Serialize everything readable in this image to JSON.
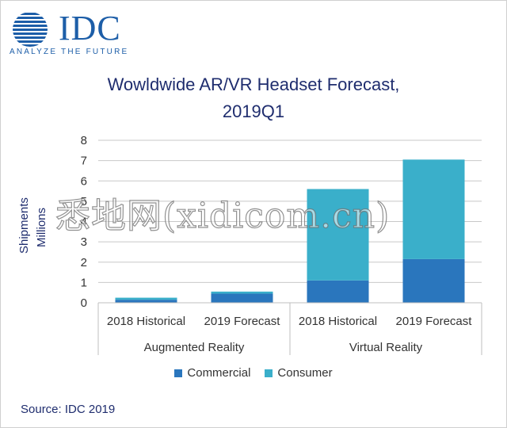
{
  "logo": {
    "wordmark": "IDC",
    "tagline": "ANALYZE THE FUTURE",
    "icon": "globe-icon"
  },
  "colors": {
    "commercial": "#2a76bd",
    "consumer": "#3aafca",
    "title": "#1f2d6e",
    "logo": "#1d5ea8",
    "grid": "#c8c8c8"
  },
  "chart_data": {
    "type": "bar",
    "stacked": true,
    "title": [
      "Wowldwide AR/VR Headset Forecast,",
      "2019Q1"
    ],
    "ylabel": [
      "Shipments",
      "Millions"
    ],
    "xlabel": "",
    "ylim": [
      0,
      8
    ],
    "yticks": [
      0,
      1,
      2,
      3,
      4,
      5,
      6,
      7,
      8
    ],
    "grid": true,
    "categories": [
      "2018 Historical",
      "2019 Forecast",
      "2018 Historical",
      "2019 Forecast"
    ],
    "groups": [
      {
        "label": "Augmented Reality",
        "span": [
          0,
          1
        ]
      },
      {
        "label": "Virtual Reality",
        "span": [
          2,
          3
        ]
      }
    ],
    "series": [
      {
        "name": "Commercial",
        "values": [
          0.15,
          0.45,
          1.1,
          2.15
        ]
      },
      {
        "name": "Consumer",
        "values": [
          0.1,
          0.1,
          4.5,
          4.9
        ]
      }
    ],
    "legend_position": "bottom",
    "source": "Source: IDC 2019"
  },
  "watermark": "悉地网(xidicom.cn)"
}
